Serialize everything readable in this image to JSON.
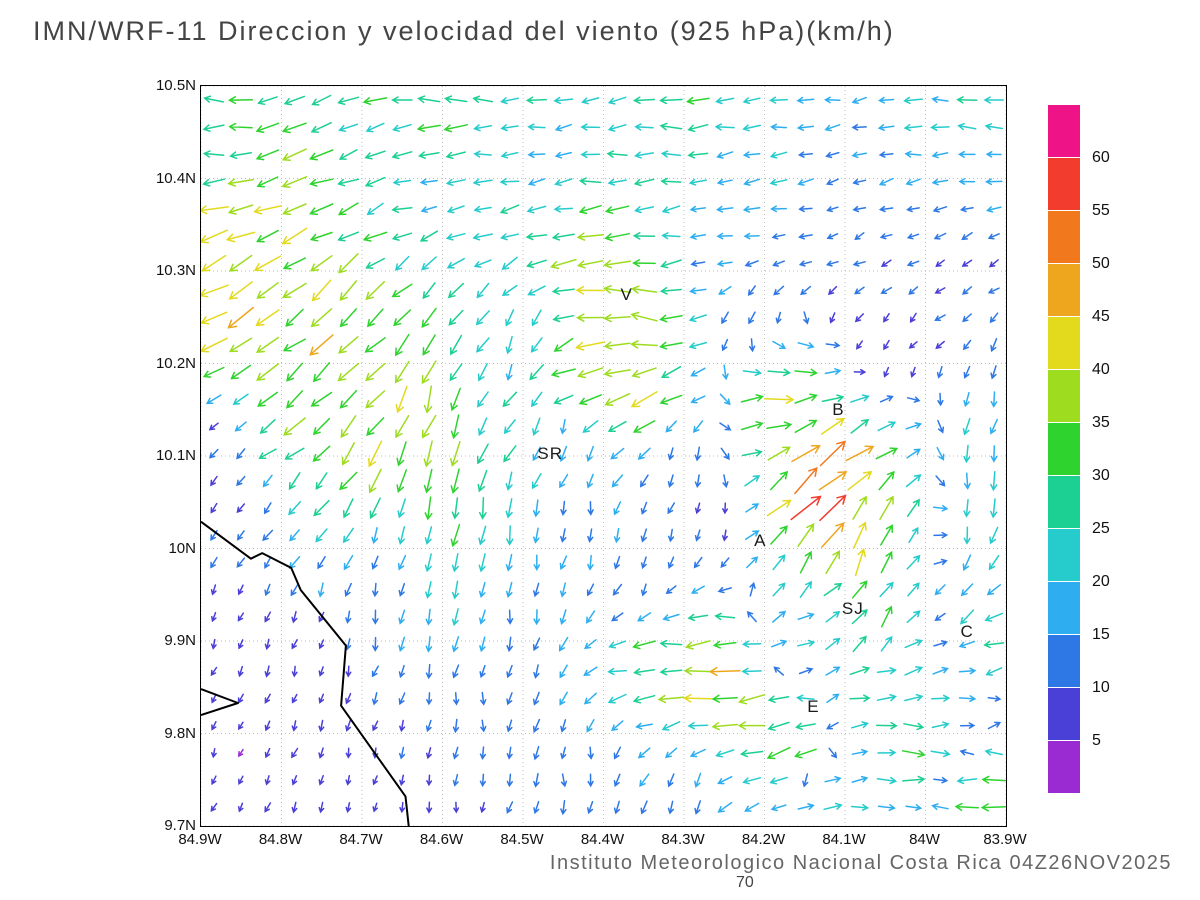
{
  "title": "IMN/WRF-11 Direccion y velocidad del viento (925 hPa)(km/h)",
  "footer": "Instituto Meteorologico Nacional Costa Rica 04Z26NOV2025",
  "footer_note": "70",
  "chart_data": {
    "type": "vector_field",
    "title": "IMN/WRF-11 Direccion y velocidad del viento (925 hPa)(km/h)",
    "units": "km/h",
    "level": "925 hPa",
    "lon_range_w": [
      84.9,
      83.9
    ],
    "lat_range_n": [
      9.7,
      10.5
    ],
    "grid": {
      "cols": 30,
      "rows": 27
    },
    "x_ticks": [
      {
        "label": "84.9W",
        "lon": 84.9
      },
      {
        "label": "84.8W",
        "lon": 84.8
      },
      {
        "label": "84.7W",
        "lon": 84.7
      },
      {
        "label": "84.6W",
        "lon": 84.6
      },
      {
        "label": "84.5W",
        "lon": 84.5
      },
      {
        "label": "84.4W",
        "lon": 84.4
      },
      {
        "label": "84.3W",
        "lon": 84.3
      },
      {
        "label": "84.2W",
        "lon": 84.2
      },
      {
        "label": "84.1W",
        "lon": 84.1
      },
      {
        "label": "84W",
        "lon": 84.0
      },
      {
        "label": "83.9W",
        "lon": 83.9
      }
    ],
    "y_ticks": [
      {
        "label": "10.5N",
        "lat": 10.5
      },
      {
        "label": "10.4N",
        "lat": 10.4
      },
      {
        "label": "10.3N",
        "lat": 10.3
      },
      {
        "label": "10.2N",
        "lat": 10.2
      },
      {
        "label": "10.1N",
        "lat": 10.1
      },
      {
        "label": "10N",
        "lat": 10.0
      },
      {
        "label": "9.9N",
        "lat": 9.9
      },
      {
        "label": "9.8N",
        "lat": 9.8
      },
      {
        "label": "9.7N",
        "lat": 9.7
      }
    ],
    "colorbar": {
      "labels_top_to_bottom": [
        "60",
        "55",
        "50",
        "45",
        "40",
        "35",
        "30",
        "25",
        "20",
        "15",
        "10",
        "5"
      ],
      "colors_top_to_bottom": [
        "#ee1487",
        "#f23c2e",
        "#f2781e",
        "#eda61e",
        "#e3da1e",
        "#9edc20",
        "#2ed32e",
        "#1ccf92",
        "#26cbcb",
        "#2eaef0",
        "#2e78e6",
        "#4a3fd6",
        "#9a2ad2"
      ]
    },
    "speed_bins": [
      {
        "max": 5,
        "color": "#9a2ad2"
      },
      {
        "max": 10,
        "color": "#4a3fd6"
      },
      {
        "max": 15,
        "color": "#2e78e6"
      },
      {
        "max": 20,
        "color": "#2eaef0"
      },
      {
        "max": 25,
        "color": "#26cbcb"
      },
      {
        "max": 30,
        "color": "#1ccf92"
      },
      {
        "max": 35,
        "color": "#2ed32e"
      },
      {
        "max": 40,
        "color": "#9edc20"
      },
      {
        "max": 45,
        "color": "#e3da1e"
      },
      {
        "max": 50,
        "color": "#eda61e"
      },
      {
        "max": 55,
        "color": "#f2781e"
      },
      {
        "max": 60,
        "color": "#f23c2e"
      },
      {
        "max": 999,
        "color": "#ee1487"
      }
    ],
    "stations": [
      {
        "label": "V",
        "lon": 84.37,
        "lat": 10.272
      },
      {
        "label": "B",
        "lon": 84.107,
        "lat": 10.148
      },
      {
        "label": "SR",
        "lon": 84.465,
        "lat": 10.1
      },
      {
        "label": "A",
        "lon": 84.204,
        "lat": 10.006
      },
      {
        "label": "SJ",
        "lon": 84.089,
        "lat": 9.932
      },
      {
        "label": "C",
        "lon": 83.947,
        "lat": 9.908
      },
      {
        "label": "E",
        "lon": 84.138,
        "lat": 9.826
      }
    ],
    "coastline_lon_lat": [
      [
        84.9,
        10.029
      ],
      [
        84.838,
        9.989
      ],
      [
        84.824,
        9.995
      ],
      [
        84.788,
        9.979
      ],
      [
        84.776,
        9.955
      ],
      [
        84.72,
        9.895
      ],
      [
        84.726,
        9.83
      ],
      [
        84.646,
        9.732
      ],
      [
        84.642,
        9.7
      ]
    ],
    "peninsula_lon_lat": [
      [
        84.9,
        9.848
      ],
      [
        84.854,
        9.833
      ],
      [
        84.9,
        9.82
      ]
    ],
    "wind_control_points_format": "[lonW, latN, direction_toward_deg_math, speed_kmh]",
    "wind_control_points": [
      [
        84.9,
        10.48,
        180,
        30
      ],
      [
        84.6,
        10.48,
        178,
        32
      ],
      [
        84.3,
        10.48,
        182,
        27
      ],
      [
        83.95,
        10.48,
        180,
        24
      ],
      [
        84.9,
        10.43,
        182,
        26
      ],
      [
        84.5,
        10.43,
        183,
        20
      ],
      [
        83.95,
        10.43,
        183,
        18
      ],
      [
        84.2,
        10.4,
        185,
        18
      ],
      [
        84.6,
        10.39,
        188,
        20
      ],
      [
        84.9,
        10.39,
        190,
        35
      ],
      [
        84.89,
        10.34,
        200,
        46
      ],
      [
        84.88,
        10.29,
        205,
        52
      ],
      [
        84.87,
        10.25,
        215,
        45
      ],
      [
        84.79,
        10.28,
        215,
        38
      ],
      [
        84.73,
        10.22,
        220,
        42
      ],
      [
        84.78,
        10.16,
        215,
        38
      ],
      [
        84.7,
        10.12,
        230,
        40
      ],
      [
        84.63,
        10.17,
        255,
        38
      ],
      [
        84.6,
        10.08,
        262,
        35
      ],
      [
        84.57,
        10.0,
        265,
        28
      ],
      [
        84.5,
        10.22,
        262,
        20
      ],
      [
        84.45,
        10.12,
        268,
        17
      ],
      [
        84.42,
        10.02,
        272,
        14
      ],
      [
        84.52,
        9.95,
        268,
        16
      ],
      [
        84.4,
        10.29,
        178,
        42
      ],
      [
        84.36,
        10.25,
        172,
        38
      ],
      [
        84.43,
        10.19,
        195,
        46
      ],
      [
        84.35,
        10.17,
        200,
        44
      ],
      [
        84.25,
        10.32,
        190,
        14
      ],
      [
        84.1,
        10.33,
        205,
        10
      ],
      [
        83.95,
        10.3,
        215,
        9
      ],
      [
        84.05,
        10.22,
        230,
        8
      ],
      [
        84.22,
        10.24,
        255,
        12
      ],
      [
        84.3,
        10.1,
        260,
        12
      ],
      [
        84.18,
        10.16,
        5,
        44
      ],
      [
        84.12,
        10.1,
        35,
        50
      ],
      [
        84.13,
        10.05,
        45,
        66
      ],
      [
        84.09,
        9.99,
        70,
        46
      ],
      [
        84.06,
        9.93,
        60,
        30
      ],
      [
        84.28,
        10.03,
        260,
        9
      ],
      [
        84.35,
        9.97,
        265,
        10
      ],
      [
        83.91,
        10.12,
        255,
        22
      ],
      [
        83.9,
        10.02,
        260,
        26
      ],
      [
        83.93,
        9.93,
        230,
        25
      ],
      [
        83.92,
        9.9,
        185,
        30
      ],
      [
        84.87,
        10.05,
        235,
        8
      ],
      [
        84.88,
        10.12,
        230,
        9
      ],
      [
        84.88,
        9.92,
        255,
        6
      ],
      [
        84.75,
        9.88,
        260,
        6
      ],
      [
        84.87,
        9.78,
        250,
        5
      ],
      [
        84.7,
        9.74,
        262,
        6
      ],
      [
        84.68,
        9.95,
        262,
        14
      ],
      [
        84.55,
        9.82,
        268,
        11
      ],
      [
        84.43,
        9.76,
        272,
        13
      ],
      [
        84.3,
        9.74,
        268,
        14
      ],
      [
        84.58,
        9.72,
        265,
        9
      ],
      [
        84.27,
        9.87,
        182,
        48
      ],
      [
        84.33,
        9.875,
        180,
        33
      ],
      [
        84.21,
        9.81,
        190,
        40
      ],
      [
        84.17,
        9.79,
        195,
        36
      ],
      [
        84.05,
        9.845,
        5,
        30
      ],
      [
        83.96,
        9.86,
        10,
        24
      ],
      [
        84.02,
        9.77,
        355,
        30
      ],
      [
        83.94,
        9.725,
        178,
        35
      ],
      [
        84.12,
        9.73,
        8,
        22
      ],
      [
        84.1,
        9.93,
        25,
        24
      ],
      [
        84.16,
        9.9,
        15,
        20
      ]
    ]
  }
}
